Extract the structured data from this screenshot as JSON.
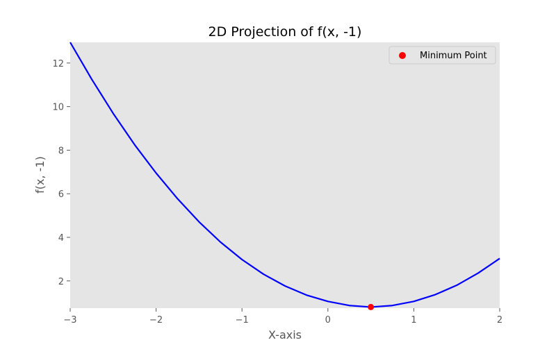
{
  "chart_data": {
    "type": "line",
    "title": "2D Projection of f(x, -1)",
    "xlabel": "X-axis",
    "ylabel": "f(x, -1)",
    "xlim": [
      -3,
      2
    ],
    "ylim": [
      0.75,
      12.95
    ],
    "xticks": [
      -3,
      -2,
      -1,
      0,
      1,
      2
    ],
    "xtick_labels": [
      "−3",
      "−2",
      "−1",
      "0",
      "1",
      "2"
    ],
    "yticks": [
      2,
      4,
      6,
      8,
      10,
      12
    ],
    "ytick_labels": [
      "2",
      "4",
      "6",
      "8",
      "10",
      "12"
    ],
    "grid": false,
    "background": "#e5e5e5",
    "series": [
      {
        "type": "line",
        "color": "#0000ff",
        "x": [
          -3.0,
          -2.75,
          -2.5,
          -2.25,
          -2.0,
          -1.75,
          -1.5,
          -1.25,
          -1.0,
          -0.75,
          -0.5,
          -0.25,
          0.0,
          0.25,
          0.5,
          0.75,
          1.0,
          1.25,
          1.5,
          1.75,
          2.0
        ],
        "y": [
          12.95,
          11.26,
          9.69,
          8.25,
          6.95,
          5.77,
          4.71,
          3.78,
          2.98,
          2.31,
          1.77,
          1.35,
          1.06,
          0.87,
          0.8,
          0.87,
          1.06,
          1.37,
          1.8,
          2.36,
          3.03
        ]
      },
      {
        "type": "scatter",
        "name": "Minimum Point",
        "color": "#ff0000",
        "x": [
          0.5
        ],
        "y": [
          0.8
        ]
      }
    ],
    "legend": {
      "position": "top-right",
      "entries": [
        "Minimum Point"
      ]
    }
  }
}
